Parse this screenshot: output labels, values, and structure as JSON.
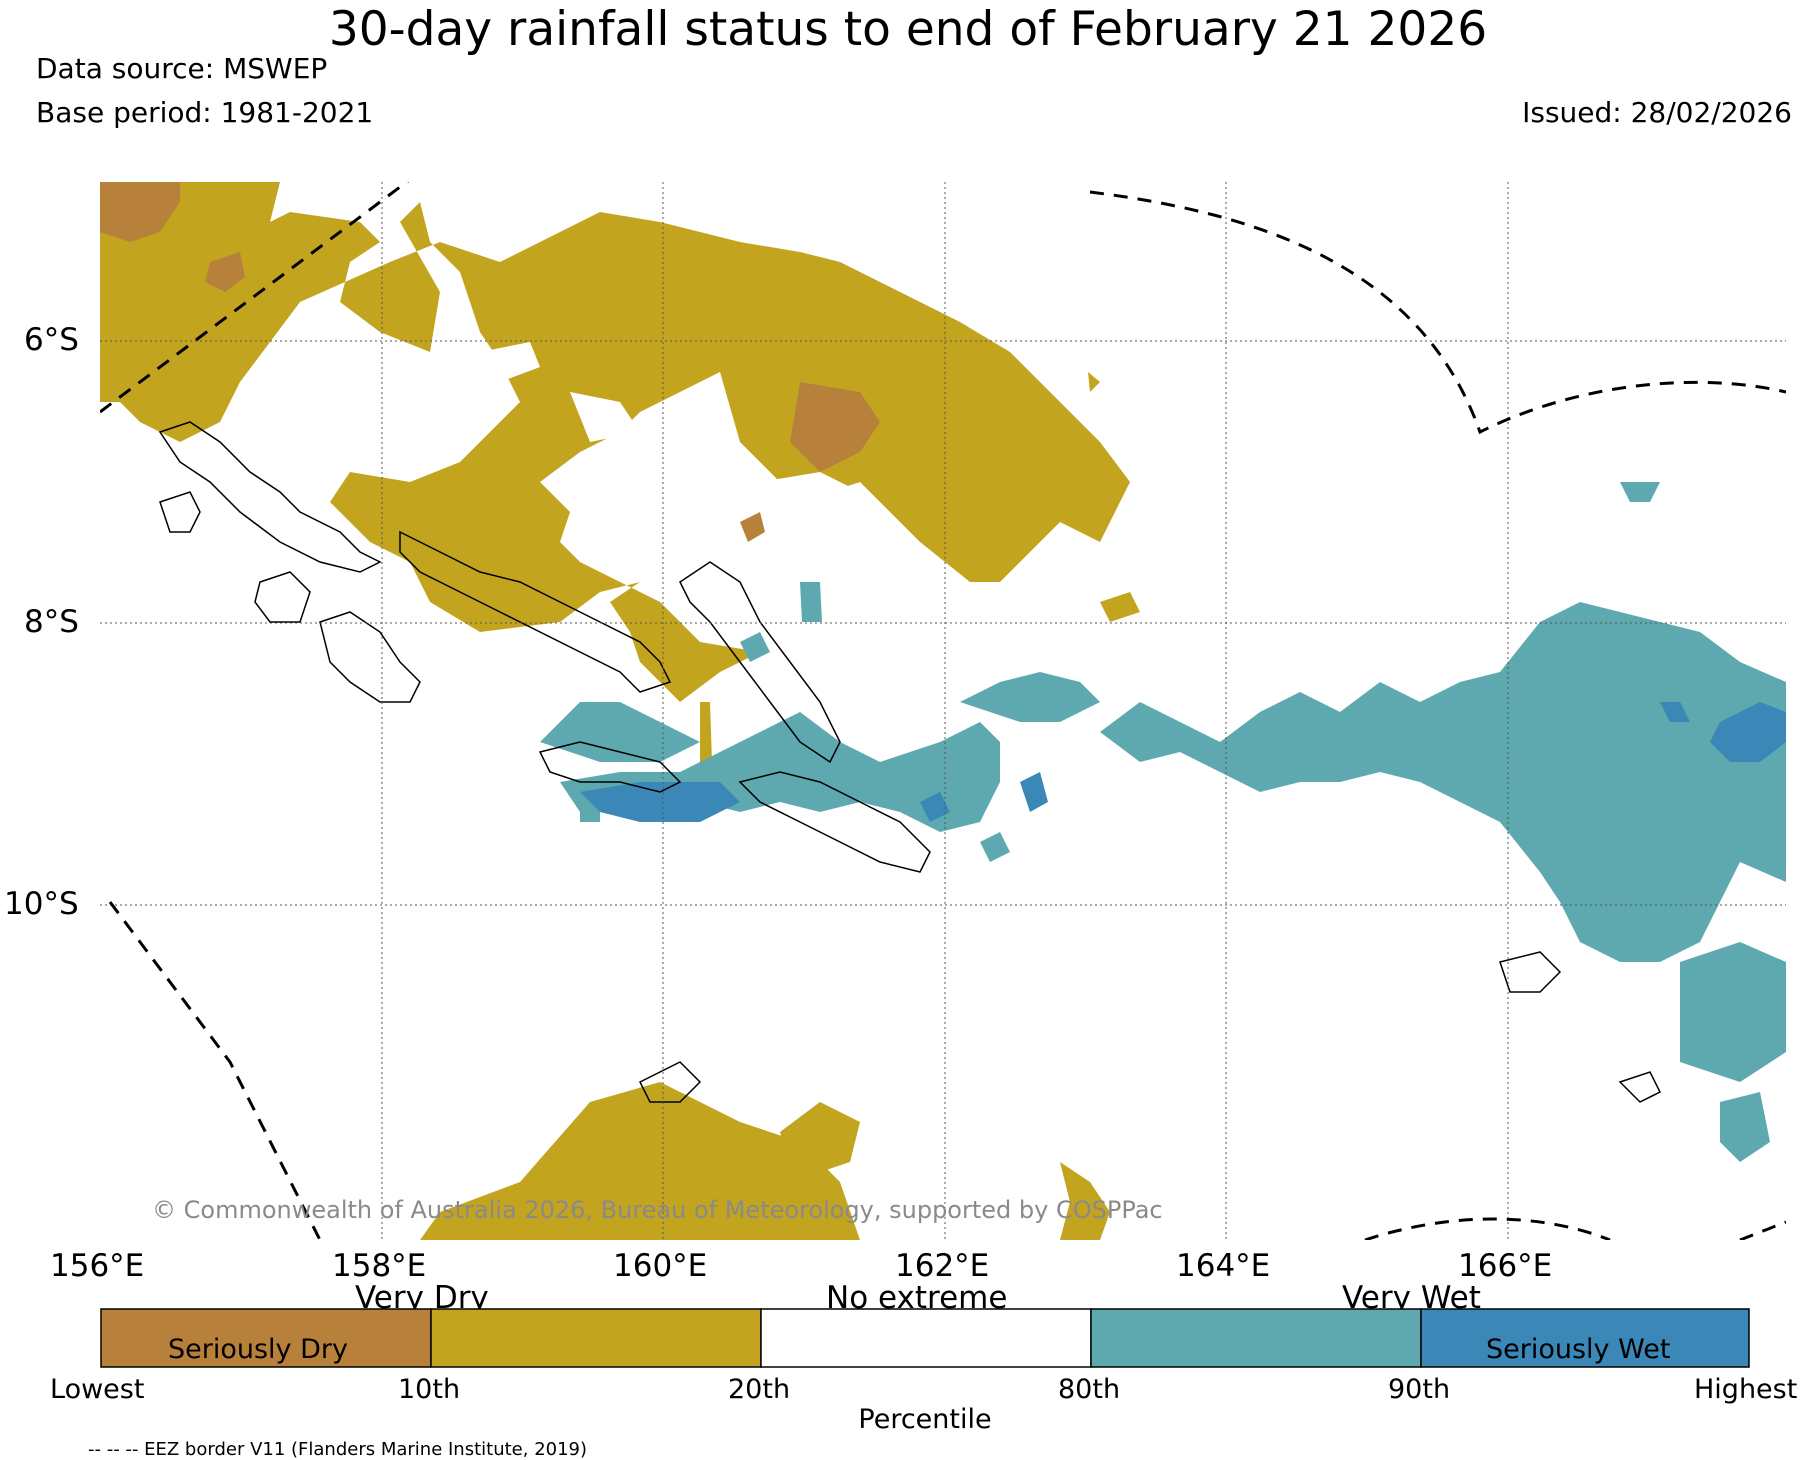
{
  "header": {
    "title": "30-day rainfall status to end of February 21 2026",
    "data_source": "Data source: MSWEP",
    "base_period": "Base period: 1981-2021",
    "issued": "Issued: 28/02/2026"
  },
  "map": {
    "lon_labels": [
      "156°E",
      "158°E",
      "160°E",
      "162°E",
      "164°E",
      "166°E"
    ],
    "lat_labels": [
      "6°S",
      "8°S",
      "10°S"
    ],
    "copyright": "© Commonwealth of Australia 2026, Bureau of Meteorology, supported by COSPPac",
    "colors": {
      "seriously_dry": "#b8813b",
      "very_dry": "#c3a41e",
      "no_extreme": "#ffffff",
      "very_wet": "#5da9af",
      "seriously_wet": "#3a87b8"
    }
  },
  "legend": {
    "upper_labels": [
      "Very Dry",
      "No extreme",
      "Very Wet"
    ],
    "box_labels": [
      "Seriously Dry",
      "Seriously Wet"
    ],
    "ticks": [
      "Lowest",
      "10th",
      "20th",
      "80th",
      "90th",
      "Highest"
    ],
    "axis_label": "Percentile",
    "eez_note": "-- -- -- EEZ border V11 (Flanders Marine Institute, 2019)"
  }
}
